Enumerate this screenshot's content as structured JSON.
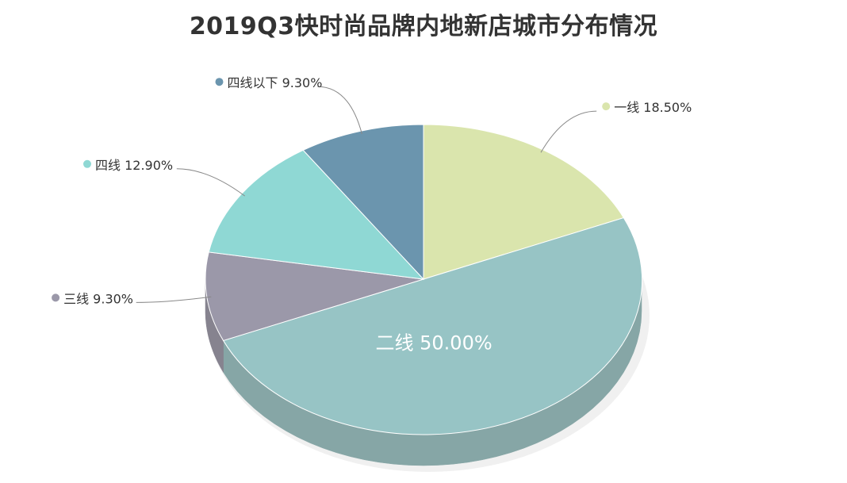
{
  "chart_data": {
    "type": "pie",
    "title": "2019Q3快时尚品牌内地新店城市分布情况",
    "slices": [
      {
        "name": "一线",
        "value": 18.5,
        "label": "一线 18.50%",
        "color": "#dae5ad",
        "side": "#b3bd8c"
      },
      {
        "name": "二线",
        "value": 50.0,
        "label": "二线 50.00%",
        "color": "#97c4c5",
        "side": "#86a6a6"
      },
      {
        "name": "三线",
        "value": 9.3,
        "label": "三线 9.30%",
        "color": "#9b98a9",
        "side": "#86838f"
      },
      {
        "name": "四线",
        "value": 12.9,
        "label": "四线 12.90%",
        "color": "#8fd8d4",
        "side": "#76b5b1"
      },
      {
        "name": "四线以下",
        "value": 9.3,
        "label": "四线以下 9.30%",
        "color": "#6b95ae",
        "side": "#587c90"
      }
    ]
  }
}
